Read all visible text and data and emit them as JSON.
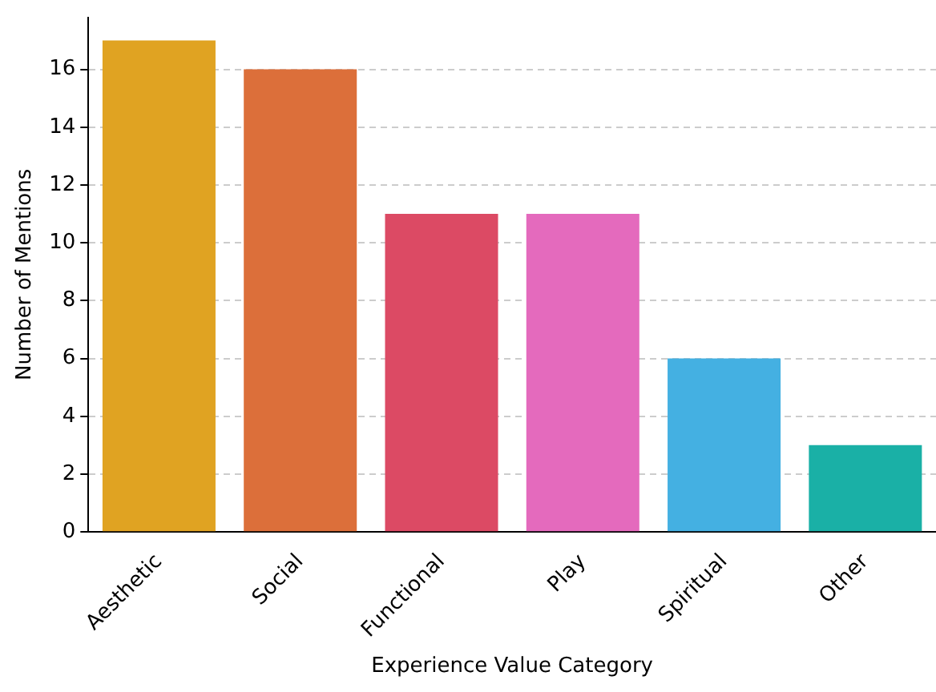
{
  "chart_data": {
    "type": "bar",
    "xlabel": "Experience Value Category",
    "ylabel": "Number of Mentions",
    "categories": [
      "Aesthetic",
      "Social",
      "Functional",
      "Play",
      "Spiritual",
      "Other"
    ],
    "values": [
      17,
      16,
      11,
      11,
      6,
      3
    ],
    "colors": [
      "#e0a322",
      "#dc6f3a",
      "#dc4a64",
      "#e46abd",
      "#44b0e2",
      "#1ab0a6"
    ],
    "ylim": [
      0,
      17.8
    ],
    "yticks": [
      0,
      2,
      4,
      6,
      8,
      10,
      12,
      14,
      16
    ],
    "grid": "y",
    "legend": false
  }
}
